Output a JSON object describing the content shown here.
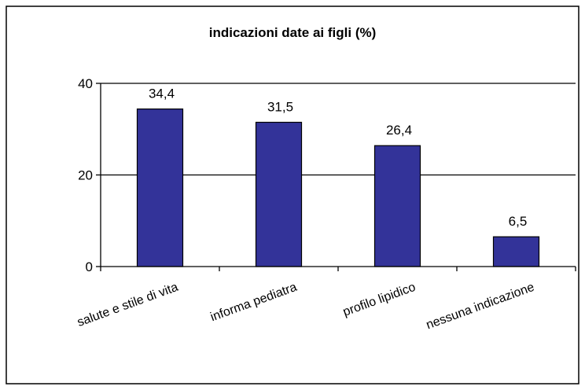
{
  "chart_data": {
    "type": "bar",
    "title": "indicazioni date ai figli (%)",
    "categories": [
      "salute e stile di vita",
      "informa pediatra",
      "profilo lipidico",
      "nessuna indicazione"
    ],
    "values": [
      34.4,
      31.5,
      26.4,
      6.5
    ],
    "data_labels": [
      "34,4",
      "31,5",
      "26,4",
      "6,5"
    ],
    "xlabel": "",
    "ylabel": "",
    "ylim": [
      0,
      40
    ],
    "yticks": [
      0,
      20,
      40
    ],
    "ytick_labels": [
      "0",
      "20",
      "40"
    ],
    "grid": true,
    "legend": "none",
    "bar_color": "#333399",
    "bar_edge_color": "#000000"
  }
}
